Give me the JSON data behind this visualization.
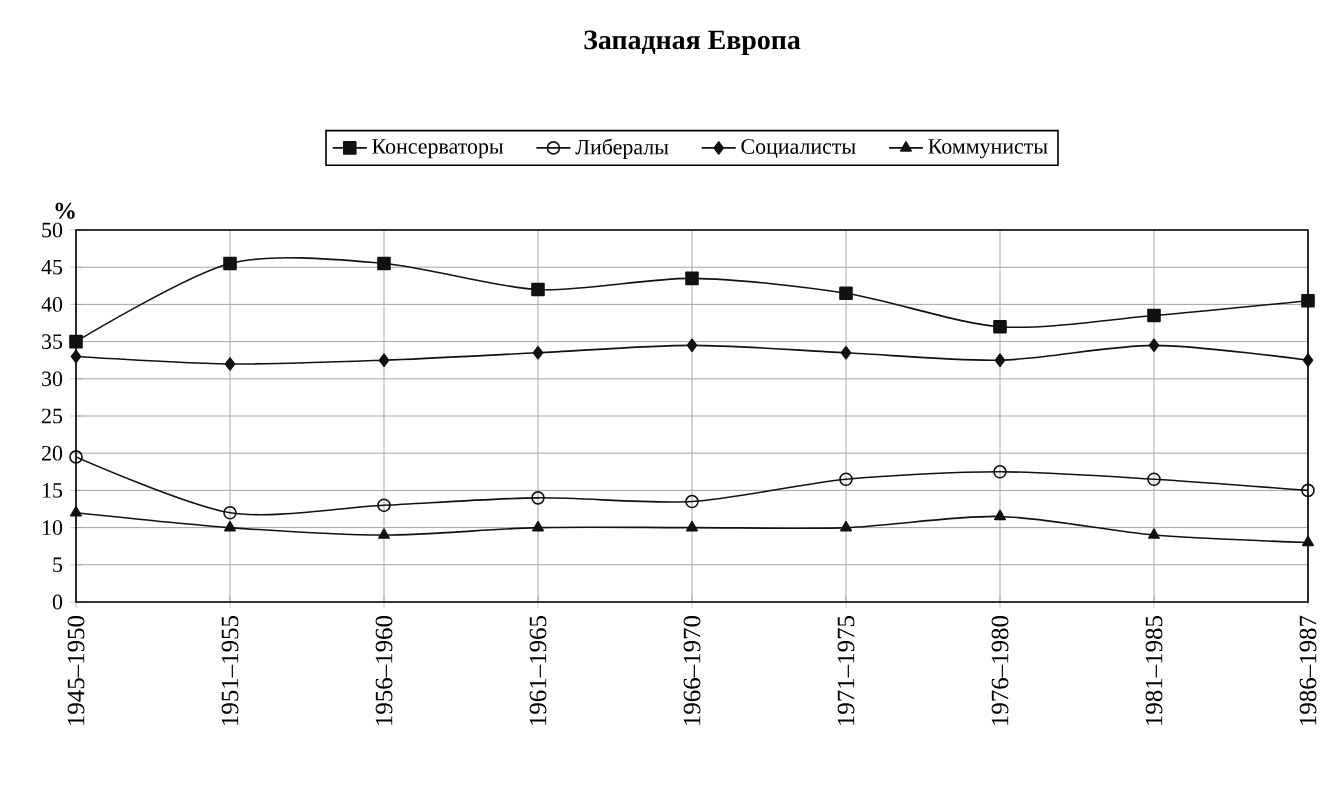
{
  "chart_data": {
    "type": "line",
    "title": "Западная Европа",
    "ylabel": "%",
    "categories": [
      "1945–1950",
      "1951–1955",
      "1956–1960",
      "1961–1965",
      "1966–1970",
      "1971–1975",
      "1976–1980",
      "1981–1985",
      "1986–1987"
    ],
    "series": [
      {
        "name": "Консерваторы",
        "color": "#111111",
        "marker": "square",
        "values": [
          35,
          45.5,
          45.5,
          42,
          43.5,
          41.5,
          37,
          38.5,
          40.5
        ]
      },
      {
        "name": "Либералы",
        "color": "#111111",
        "marker": "circle",
        "values": [
          19.5,
          12,
          13,
          14,
          13.5,
          16.5,
          17.5,
          16.5,
          15
        ]
      },
      {
        "name": "Социалисты",
        "color": "#111111",
        "marker": "diamond",
        "values": [
          33,
          32,
          32.5,
          33.5,
          34.5,
          33.5,
          32.5,
          34.5,
          32.5
        ]
      },
      {
        "name": "Коммунисты",
        "color": "#111111",
        "marker": "triangle",
        "values": [
          12,
          10,
          9,
          10,
          10,
          10,
          11.5,
          9,
          8
        ]
      }
    ],
    "ylim": [
      0,
      50
    ],
    "yticks": [
      0,
      5,
      10,
      15,
      20,
      25,
      30,
      35,
      40,
      45,
      50
    ],
    "grid": true,
    "legend": "top",
    "line_style": "solid"
  }
}
